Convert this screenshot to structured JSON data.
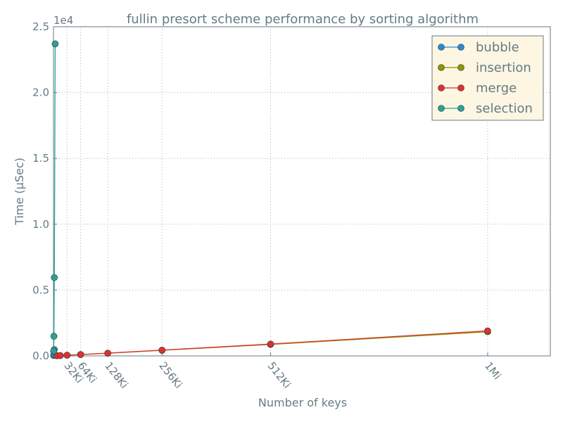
{
  "chart_data": {
    "type": "line",
    "title": "fullin presort scheme performance by sorting algorithm",
    "x_label": "Number of keys",
    "y_label": "Time (μSec)",
    "y_offset_label": "1e4",
    "xlim": [
      0,
      1200000
    ],
    "ylim": [
      0,
      25000
    ],
    "xticks": [
      {
        "value": 32768,
        "label": "32Ki"
      },
      {
        "value": 65536,
        "label": "64Ki"
      },
      {
        "value": 131072,
        "label": "128Ki"
      },
      {
        "value": 262144,
        "label": "256Ki"
      },
      {
        "value": 524288,
        "label": "512Ki"
      },
      {
        "value": 1048576,
        "label": "1Mi"
      }
    ],
    "yticks": [
      {
        "value": 0,
        "label": "0.0"
      },
      {
        "value": 5000,
        "label": "0.5"
      },
      {
        "value": 10000,
        "label": "1.0"
      },
      {
        "value": 15000,
        "label": "1.5"
      },
      {
        "value": 20000,
        "label": "2.0"
      },
      {
        "value": 25000,
        "label": "2.5"
      }
    ],
    "grid": true,
    "legend": "upper right",
    "series": [
      {
        "name": "bubble",
        "color": "#268bd2",
        "x": [
          512,
          1024,
          2048
        ],
        "values": [
          30,
          120,
          480
        ]
      },
      {
        "name": "insertion",
        "color": "#859900",
        "x": [
          8192,
          16384,
          32768,
          65536,
          131072,
          262144,
          524288,
          1048576
        ],
        "values": [
          12,
          25,
          50,
          100,
          200,
          420,
          870,
          1830
        ]
      },
      {
        "name": "merge",
        "color": "#dc322f",
        "x": [
          8192,
          16384,
          32768,
          65536,
          131072,
          262144,
          524288,
          1048576
        ],
        "values": [
          12,
          25,
          52,
          105,
          210,
          440,
          900,
          1900
        ]
      },
      {
        "name": "selection",
        "color": "#2aa198",
        "x": [
          512,
          1024,
          2048,
          4096
        ],
        "values": [
          370,
          1490,
          5950,
          23700
        ]
      }
    ]
  }
}
